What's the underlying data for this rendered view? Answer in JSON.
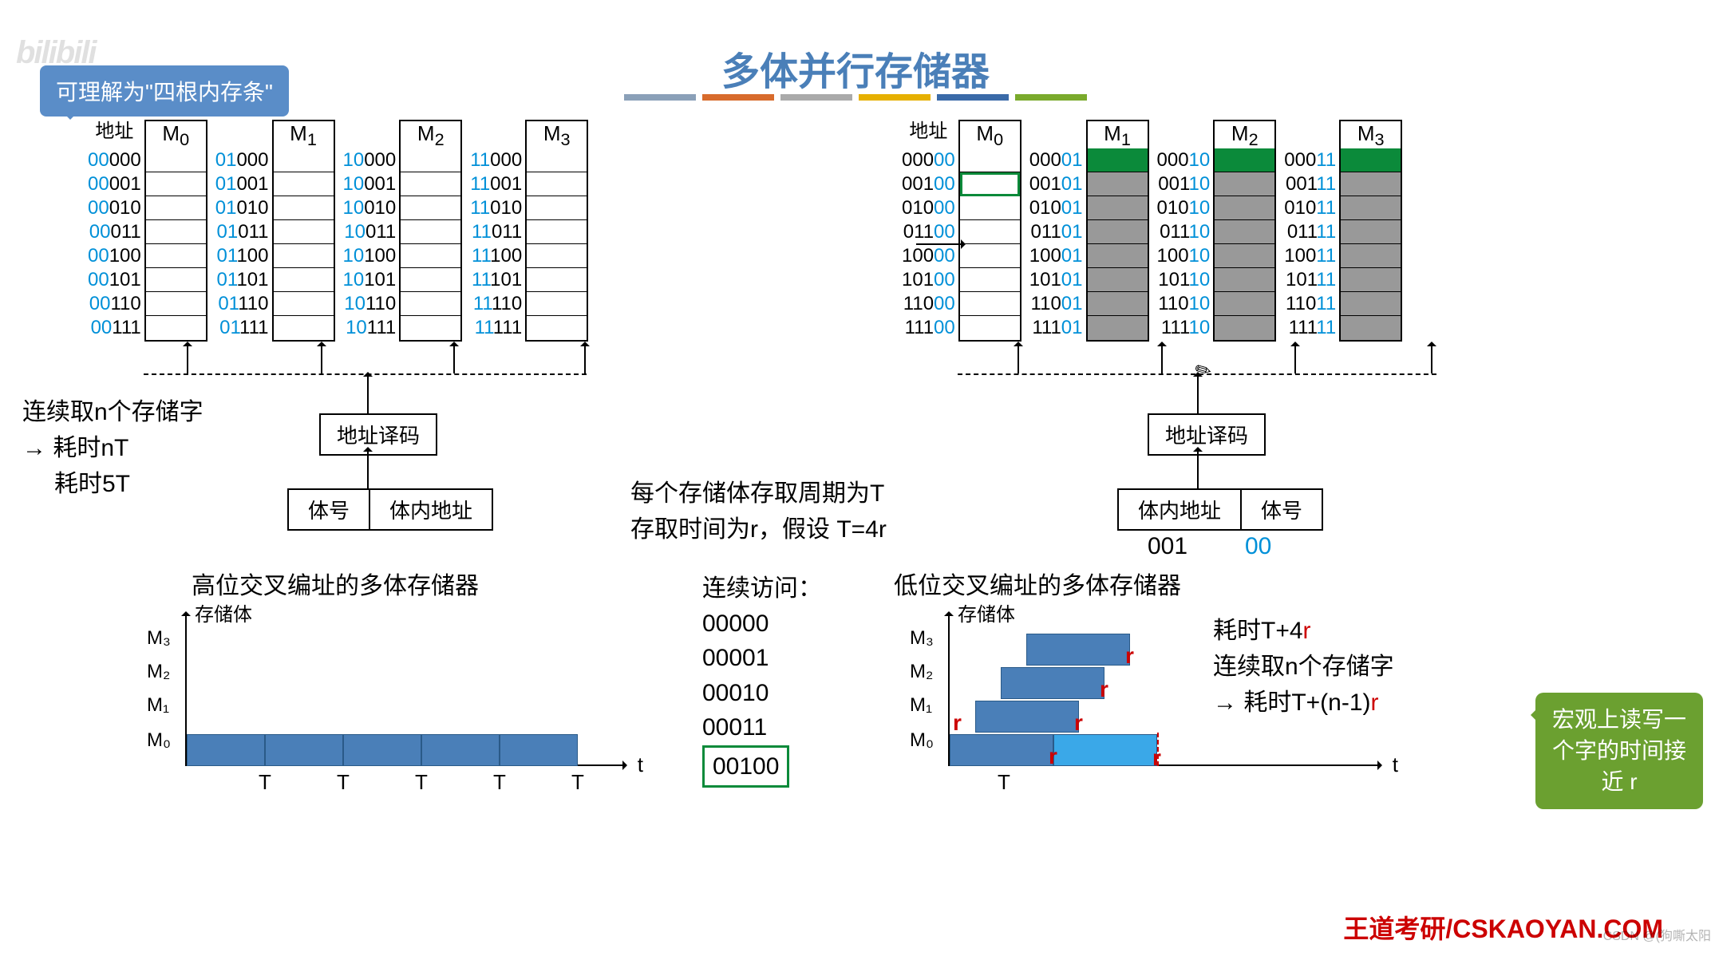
{
  "title": "多体并行存储器",
  "title_bar_colors": [
    "#8aa0b8",
    "#d86b2c",
    "#aaa",
    "#e6b000",
    "#3a6aa8",
    "#7aaa2c"
  ],
  "tooltip_left": "可理解为\"四根内存条\"",
  "tooltip_right": "宏观上读写一个字的时间接近 r",
  "watermark": "bilibili",
  "footer": "王道考研/CSKAOYAN.COM",
  "csdn": "CSDN @(狗嘶太阳",
  "left_banks": {
    "addr_header": "地址",
    "columns": [
      "M₀",
      "M₁",
      "M₂",
      "M₃"
    ],
    "prefixes": [
      "00",
      "01",
      "10",
      "11"
    ],
    "suffixes": [
      "000",
      "001",
      "010",
      "011",
      "100",
      "101",
      "110",
      "111"
    ]
  },
  "right_banks": {
    "addr_header": "地址",
    "columns": [
      "M₀",
      "M₁",
      "M₂",
      "M₃"
    ],
    "prefixes": [
      "000",
      "001",
      "010",
      "011",
      "100",
      "101",
      "110",
      "111"
    ],
    "suffixes": [
      "00",
      "01",
      "10",
      "11"
    ],
    "green_row": 0,
    "gray_start": 1
  },
  "decoder_label": "地址译码",
  "split_left": [
    "体号",
    "体内地址"
  ],
  "split_right": [
    "体内地址",
    "体号"
  ],
  "split_right_vals": [
    "001",
    "00"
  ],
  "left_text": {
    "l1": "连续取n个存储字",
    "l2": "耗时nT",
    "l3": "耗时5T"
  },
  "center_text": {
    "l1": "每个存储体存取周期为T",
    "l2": "存取时间为r，假设 T=4r",
    "l3": "连续访问："
  },
  "chart_left_title": "高位交叉编址的多体存储器",
  "chart_right_title": "低位交叉编址的多体存储器",
  "axis_label": "存储体",
  "m_labels": [
    "M₃",
    "M₂",
    "M₁",
    "M₀"
  ],
  "t_label": "t",
  "T_label": "T",
  "seq": [
    "00000",
    "00001",
    "00010",
    "00011",
    "00100"
  ],
  "right_formulas": {
    "l1_a": "耗时T+4",
    "l1_b": "r",
    "l2": "连续取n个存储字",
    "l3_a": "→ 耗时T+(n-1)",
    "l3_b": "r"
  },
  "colors": {
    "blue": "#0090d8",
    "darkblue": "#4a7fb8",
    "green": "#0b8a3a",
    "red": "#c00",
    "gray": "#999"
  }
}
